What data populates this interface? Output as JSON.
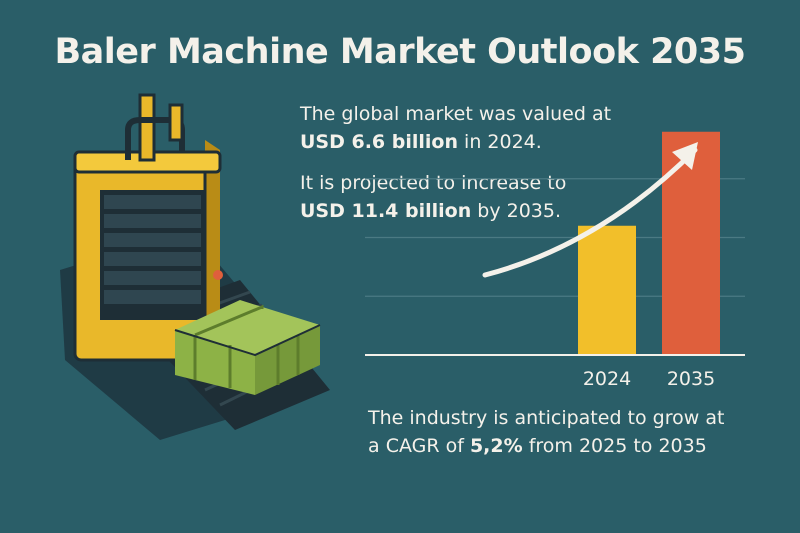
{
  "title": "Baler Machine Market Outlook 2035",
  "stat1": {
    "line1": "The global market was valued at",
    "value": "USD 6.6 billion",
    "suffix": " in 2024."
  },
  "stat2": {
    "line1": "It is projected to increase to",
    "value": "USD 11.4 billion",
    "suffix": " by 2035."
  },
  "cagr": {
    "line1": "The industry is anticipated to grow at",
    "prefix": "a ",
    "label": "CAGR",
    "mid": " of ",
    "value": "5,2%",
    "suffix": " from 2025 to 2035"
  },
  "colors": {
    "background": "#2a5e68",
    "bar_2024": "#f2bf2a",
    "bar_2035": "#df5f3c",
    "baler_body": "#e9b82a",
    "bale": "#8db246"
  },
  "icons": [
    "baler-machine-icon",
    "hay-bale-icon",
    "growth-arrow-icon"
  ],
  "chart_data": {
    "type": "bar",
    "categories": [
      "2024",
      "2035"
    ],
    "values": [
      6.6,
      11.4
    ],
    "title": "",
    "xlabel": "",
    "ylabel": "",
    "ylim": [
      0,
      12
    ],
    "grid": true,
    "legend": "none"
  }
}
